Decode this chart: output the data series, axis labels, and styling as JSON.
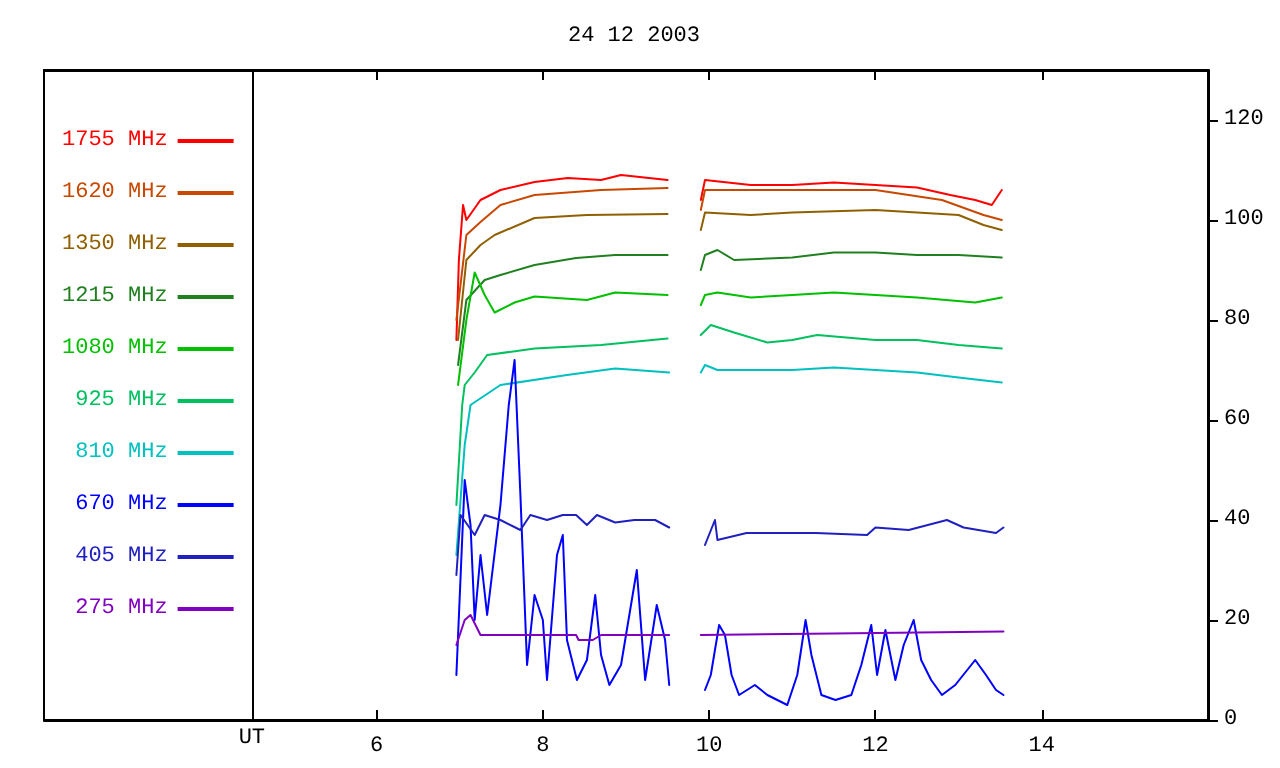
{
  "chart_data": {
    "type": "line",
    "title": "24 12 2003",
    "xlim": [
      2,
      16
    ],
    "xticks": [
      6,
      8,
      10,
      12,
      14
    ],
    "ylim": [
      0,
      130
    ],
    "yticks": [
      0,
      20,
      40,
      60,
      80,
      100,
      120
    ],
    "grid": false,
    "legend": "left",
    "marker": "none",
    "line_style": "solid",
    "ref_lines": [
      {
        "axis": "x",
        "value": 4.5,
        "label": "UT",
        "color": "#000000"
      }
    ],
    "series": [
      {
        "name": "1755 MHz",
        "color": "#ff0000",
        "x": [
          6.96,
          6.99,
          7.04,
          7.08,
          7.25,
          7.49,
          7.9,
          8.3,
          8.7,
          8.94,
          9.5,
          9.7,
          9.9,
          9.95,
          10.5,
          11,
          11.5,
          12,
          12.5,
          12.9,
          13.2,
          13.4,
          13.52
        ],
        "values": [
          76,
          92,
          103,
          100,
          104,
          106,
          107.6,
          108.4,
          108,
          109,
          108,
          null,
          104,
          108,
          107,
          107,
          107.5,
          107,
          106.5,
          105,
          104,
          103,
          106
        ]
      },
      {
        "name": "1620 MHz",
        "color": "#c84800",
        "x": [
          6.96,
          7.08,
          7.25,
          7.49,
          7.9,
          8.7,
          9.5,
          9.7,
          9.9,
          9.95,
          11,
          12,
          12.8,
          13.3,
          13.52
        ],
        "values": [
          80,
          97,
          99.6,
          103,
          105,
          106,
          106.4,
          null,
          102,
          106,
          106,
          106,
          104,
          101,
          100
        ]
      },
      {
        "name": "1350 MHz",
        "color": "#906000",
        "x": [
          6.98,
          7.08,
          7.25,
          7.42,
          7.9,
          8.53,
          9.5,
          9.7,
          9.9,
          9.95,
          10.5,
          11,
          12,
          12.5,
          13,
          13.3,
          13.52
        ],
        "values": [
          76,
          92,
          95,
          97,
          100.4,
          101,
          101.2,
          null,
          98,
          101.5,
          101,
          101.5,
          102,
          101.5,
          101,
          99,
          98
        ]
      },
      {
        "name": "1215 MHz",
        "color": "#208020",
        "x": [
          6.98,
          7.08,
          7.3,
          7.49,
          7.9,
          8.4,
          8.87,
          9.5,
          9.7,
          9.9,
          9.95,
          10.1,
          10.3,
          11,
          11.5,
          12,
          12.5,
          13,
          13.52
        ],
        "values": [
          71,
          84,
          88,
          89,
          91,
          92.4,
          93,
          93,
          null,
          90,
          93,
          94,
          92,
          92.5,
          93.5,
          93.5,
          93,
          93,
          92.5
        ]
      },
      {
        "name": "1080 MHz",
        "color": "#00c000",
        "x": [
          6.98,
          7.08,
          7.18,
          7.3,
          7.42,
          7.66,
          7.9,
          8.53,
          8.87,
          9.5,
          9.7,
          9.9,
          9.95,
          10.1,
          10.5,
          11,
          11.5,
          12,
          12.5,
          13.2,
          13.52
        ],
        "values": [
          67,
          80,
          89.5,
          85,
          81.5,
          83.5,
          84.7,
          84,
          85.5,
          85,
          null,
          83,
          85,
          85.5,
          84.5,
          85,
          85.5,
          85,
          84.5,
          83.5,
          84.5
        ]
      },
      {
        "name": "925 MHz",
        "color": "#00c060",
        "x": [
          6.96,
          7.03,
          7.06,
          7.18,
          7.33,
          7.9,
          8.7,
          9.5,
          9.7,
          9.9,
          10.02,
          10.3,
          10.7,
          11,
          11.3,
          12,
          12.5,
          13,
          13.52
        ],
        "values": [
          43,
          63,
          67,
          69.5,
          73,
          74.3,
          75,
          76.3,
          null,
          77,
          79,
          77.5,
          75.5,
          76,
          77,
          76,
          76,
          75,
          74.3
        ]
      },
      {
        "name": "810 MHz",
        "color": "#00c0c0",
        "x": [
          6.96,
          7.06,
          7.13,
          7.49,
          8.29,
          8.87,
          9.52,
          9.7,
          9.9,
          9.95,
          10.1,
          10.5,
          11,
          11.5,
          12,
          12.5,
          13,
          13.52
        ],
        "values": [
          33,
          55,
          63,
          67,
          69,
          70.3,
          69.5,
          null,
          69.5,
          71,
          70,
          70,
          70,
          70.5,
          70,
          69.5,
          68.5,
          67.5
        ]
      },
      {
        "name": "670 MHz",
        "color": "#0000ff",
        "x": [
          6.96,
          7.06,
          7.13,
          7.18,
          7.25,
          7.33,
          7.49,
          7.59,
          7.66,
          7.73,
          7.81,
          7.9,
          8.0,
          8.05,
          8.17,
          8.24,
          8.29,
          8.41,
          8.53,
          8.63,
          8.7,
          8.8,
          8.94,
          9.13,
          9.23,
          9.37,
          9.47,
          9.52,
          9.7,
          9.95,
          10.02,
          10.12,
          10.19,
          10.27,
          10.36,
          10.55,
          10.7,
          10.94,
          11.06,
          11.16,
          11.23,
          11.35,
          11.52,
          11.71,
          11.83,
          11.95,
          12.02,
          12.12,
          12.24,
          12.34,
          12.46,
          12.55,
          12.67,
          12.8,
          12.96,
          13.2,
          13.33,
          13.45,
          13.54
        ],
        "values": [
          9,
          48,
          39,
          20,
          33,
          21,
          43,
          63,
          72,
          45,
          11,
          25,
          20,
          8,
          33,
          37,
          16,
          8,
          12,
          25,
          13,
          7,
          11,
          30,
          8,
          23,
          16,
          7,
          null,
          6,
          9,
          19,
          17,
          9,
          5,
          7,
          5,
          3,
          9,
          20,
          13,
          5,
          4,
          5,
          11,
          19,
          9,
          18,
          8,
          15,
          20,
          12,
          8,
          5,
          7,
          12,
          9,
          6,
          5
        ]
      },
      {
        "name": "405 MHz",
        "color": "#2020c0",
        "x": [
          6.96,
          7.01,
          7.18,
          7.3,
          7.49,
          7.73,
          7.85,
          8.05,
          8.24,
          8.4,
          8.53,
          8.65,
          8.87,
          9.1,
          9.35,
          9.52,
          9.7,
          9.95,
          10.07,
          10.1,
          10.45,
          11.28,
          11.9,
          12,
          12.4,
          12.86,
          13.06,
          13.45,
          13.54
        ],
        "values": [
          29,
          41,
          37,
          41,
          40,
          38,
          41,
          40,
          41,
          41,
          39,
          41,
          39.5,
          40,
          40,
          38.5,
          null,
          35,
          40,
          36,
          37.4,
          37.4,
          37,
          38.5,
          38,
          40,
          38.5,
          37.4,
          38.5
        ]
      },
      {
        "name": "275 MHz",
        "color": "#8000c0",
        "x": [
          6.96,
          7.06,
          7.13,
          7.25,
          7.49,
          7.9,
          8.4,
          8.43,
          8.6,
          8.7,
          9.52,
          9.7,
          9.9,
          11.5,
          13.54
        ],
        "values": [
          15,
          20,
          21,
          17,
          17,
          17,
          17,
          16,
          16,
          17,
          17,
          null,
          17,
          17.3,
          17.7
        ]
      }
    ]
  }
}
